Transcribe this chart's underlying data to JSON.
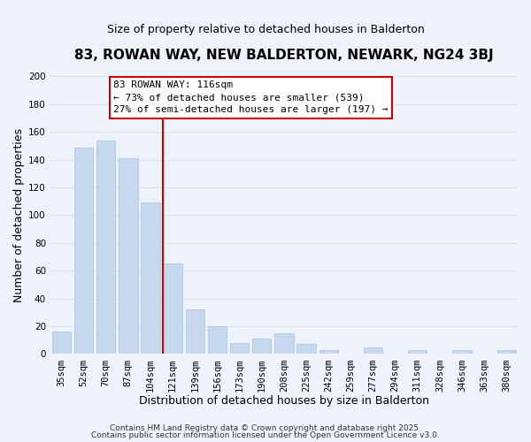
{
  "title": "83, ROWAN WAY, NEW BALDERTON, NEWARK, NG24 3BJ",
  "subtitle": "Size of property relative to detached houses in Balderton",
  "xlabel": "Distribution of detached houses by size in Balderton",
  "ylabel": "Number of detached properties",
  "bar_labels": [
    "35sqm",
    "52sqm",
    "70sqm",
    "87sqm",
    "104sqm",
    "121sqm",
    "139sqm",
    "156sqm",
    "173sqm",
    "190sqm",
    "208sqm",
    "225sqm",
    "242sqm",
    "259sqm",
    "277sqm",
    "294sqm",
    "311sqm",
    "328sqm",
    "346sqm",
    "363sqm",
    "380sqm"
  ],
  "bar_values": [
    16,
    149,
    154,
    141,
    109,
    65,
    32,
    20,
    8,
    11,
    15,
    7,
    3,
    0,
    5,
    0,
    3,
    0,
    3,
    0,
    3
  ],
  "bar_color": "#c5d8ed",
  "bar_edge_color": "#aac4de",
  "vline_index": 5,
  "vline_color": "#cc0000",
  "ylim": [
    0,
    200
  ],
  "yticks": [
    0,
    20,
    40,
    60,
    80,
    100,
    120,
    140,
    160,
    180,
    200
  ],
  "annotation_title": "83 ROWAN WAY: 116sqm",
  "annotation_line1": "← 73% of detached houses are smaller (539)",
  "annotation_line2": "27% of semi-detached houses are larger (197) →",
  "annotation_box_color": "#ffffff",
  "annotation_box_edge": "#cc0000",
  "footer_line1": "Contains HM Land Registry data © Crown copyright and database right 2025.",
  "footer_line2": "Contains public sector information licensed under the Open Government Licence v3.0.",
  "background_color": "#eef2fb",
  "grid_color": "#d8e4f0",
  "title_fontsize": 11,
  "subtitle_fontsize": 9,
  "axis_label_fontsize": 9,
  "tick_fontsize": 7.5,
  "annotation_fontsize": 8,
  "footer_fontsize": 6.5
}
